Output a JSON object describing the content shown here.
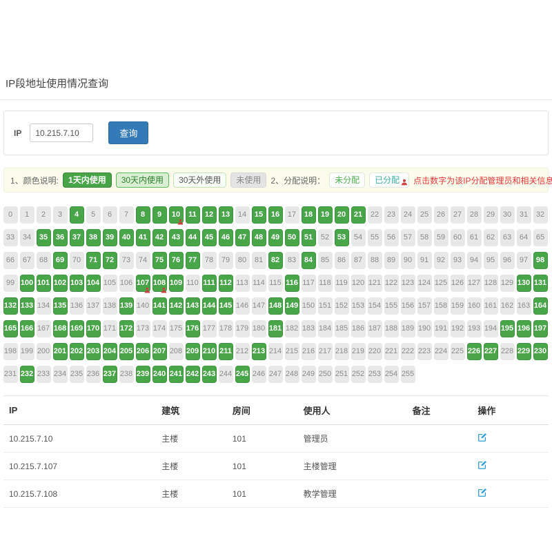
{
  "page": {
    "title": "IP段地址使用情况查询"
  },
  "search": {
    "label": "IP",
    "value": "10.215.7.10",
    "button": "查询"
  },
  "legend": {
    "color_label": "1、颜色说明:",
    "badges": [
      {
        "label": "1天内使用"
      },
      {
        "label": "30天内使用"
      },
      {
        "label": "30天外使用"
      },
      {
        "label": "未使用"
      }
    ],
    "alloc_label": "2、分配说明：",
    "alloc_badges": [
      {
        "label": "未分配"
      },
      {
        "label": "已分配"
      }
    ],
    "hint": "点击数字为该IP分配管理员和相关信息"
  },
  "grid": {
    "total": 256,
    "columns": 33,
    "green": [
      4,
      8,
      9,
      10,
      11,
      12,
      13,
      15,
      16,
      18,
      19,
      20,
      21,
      35,
      36,
      37,
      38,
      39,
      40,
      41,
      42,
      43,
      44,
      45,
      46,
      47,
      48,
      49,
      50,
      51,
      53,
      69,
      71,
      72,
      75,
      76,
      77,
      82,
      84,
      98,
      100,
      101,
      102,
      103,
      104,
      107,
      108,
      109,
      111,
      112,
      116,
      130,
      131,
      132,
      133,
      135,
      139,
      141,
      142,
      143,
      144,
      145,
      148,
      149,
      164,
      165,
      166,
      168,
      169,
      170,
      172,
      176,
      181,
      195,
      196,
      197,
      201,
      202,
      203,
      204,
      205,
      206,
      207,
      209,
      210,
      211,
      213,
      226,
      227,
      229,
      230,
      232,
      237,
      239,
      240,
      241,
      242,
      243,
      245
    ],
    "allocated": [
      10,
      107,
      108
    ]
  },
  "table": {
    "headers": [
      "IP",
      "建筑",
      "房间",
      "使用人",
      "备注",
      "操作"
    ],
    "rows": [
      {
        "ip": "10.215.7.10",
        "building": "主楼",
        "room": "101",
        "user": "管理员",
        "note": ""
      },
      {
        "ip": "10.215.7.107",
        "building": "主楼",
        "room": "101",
        "user": "主楼管理",
        "note": ""
      },
      {
        "ip": "10.215.7.108",
        "building": "主楼",
        "room": "101",
        "user": "教学管理",
        "note": ""
      }
    ]
  },
  "colors": {
    "primary_button": "#337ab7",
    "used_cell": "#48a648",
    "unused_cell": "#e8e8e8",
    "hint_red": "#e4393c",
    "allocated_icon": "#c9403f",
    "edit_icon": "#2f9fd8"
  }
}
